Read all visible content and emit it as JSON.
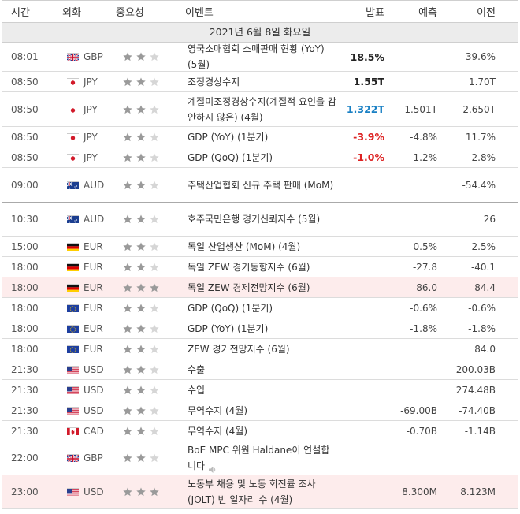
{
  "header": {
    "time": "시간",
    "currency": "외화",
    "importance": "중요성",
    "event": "이벤트",
    "actual": "발표",
    "forecast": "예측",
    "previous": "이전"
  },
  "date": "2021년 6월 8일 화요일",
  "colors": {
    "red": "#dd2222",
    "blue": "#1a80c4",
    "star_active": "#9a9a9a",
    "star_inactive": "#d6d6d6",
    "highlight": "#fdecec"
  },
  "rows": [
    {
      "time": "08:01",
      "flag": "uk-flag-icon",
      "cur": "GBP",
      "stars": 2,
      "event": "영국소매협회 소매판매 현황 (YoY) (5월)",
      "actual": "18.5%",
      "actual_color": "black",
      "forecast": "",
      "previous": "39.6%"
    },
    {
      "time": "08:50",
      "flag": "japan-flag-icon",
      "cur": "JPY",
      "stars": 2,
      "event": "조정경상수지",
      "actual": "1.55T",
      "actual_color": "black",
      "forecast": "",
      "previous": "1.70T"
    },
    {
      "time": "08:50",
      "flag": "japan-flag-icon",
      "cur": "JPY",
      "stars": 2,
      "event": "계절미조정경상수지(계절적 요인을 감안하지 않은) (4월)",
      "actual": "1.322T",
      "actual_color": "blue",
      "forecast": "1.501T",
      "previous": "2.650T"
    },
    {
      "time": "08:50",
      "flag": "japan-flag-icon",
      "cur": "JPY",
      "stars": 2,
      "event": "GDP (YoY) (1분기)",
      "actual": "-3.9%",
      "actual_color": "red",
      "forecast": "-4.8%",
      "previous": "11.7%"
    },
    {
      "time": "08:50",
      "flag": "japan-flag-icon",
      "cur": "JPY",
      "stars": 2,
      "event": "GDP (QoQ) (1분기)",
      "actual": "-1.0%",
      "actual_color": "red",
      "forecast": "-1.2%",
      "previous": "2.8%"
    },
    {
      "time": "09:00",
      "flag": "australia-flag-icon",
      "cur": "AUD",
      "stars": 2,
      "event": "주택산업협회 신규 주택 판매 (MoM)",
      "actual": "",
      "actual_color": "black",
      "forecast": "",
      "previous": "-54.4%"
    },
    {
      "time": "10:30",
      "flag": "australia-flag-icon",
      "cur": "AUD",
      "stars": 2,
      "event": "호주국민은행 경기신뢰지수 (5월)",
      "actual": "",
      "actual_color": "black",
      "forecast": "",
      "previous": "26"
    },
    {
      "time": "15:00",
      "flag": "germany-flag-icon",
      "cur": "EUR",
      "stars": 2,
      "event": "독일 산업생산 (MoM) (4월)",
      "actual": "",
      "actual_color": "black",
      "forecast": "0.5%",
      "previous": "2.5%"
    },
    {
      "time": "18:00",
      "flag": "germany-flag-icon",
      "cur": "EUR",
      "stars": 2,
      "event": "독일 ZEW 경기동향지수 (6월)",
      "actual": "",
      "actual_color": "black",
      "forecast": "-27.8",
      "previous": "-40.1"
    },
    {
      "time": "18:00",
      "flag": "germany-flag-icon",
      "cur": "EUR",
      "stars": 3,
      "event": "독일 ZEW 경제전망지수 (6월)",
      "actual": "",
      "actual_color": "black",
      "forecast": "86.0",
      "previous": "84.4"
    },
    {
      "time": "18:00",
      "flag": "eu-flag-icon",
      "cur": "EUR",
      "stars": 2,
      "event": "GDP (QoQ) (1분기)",
      "actual": "",
      "actual_color": "black",
      "forecast": "-0.6%",
      "previous": "-0.6%"
    },
    {
      "time": "18:00",
      "flag": "eu-flag-icon",
      "cur": "EUR",
      "stars": 2,
      "event": "GDP (YoY) (1분기)",
      "actual": "",
      "actual_color": "black",
      "forecast": "-1.8%",
      "previous": "-1.8%"
    },
    {
      "time": "18:00",
      "flag": "eu-flag-icon",
      "cur": "EUR",
      "stars": 2,
      "event": "ZEW 경기전망지수 (6월)",
      "actual": "",
      "actual_color": "black",
      "forecast": "",
      "previous": "84.0"
    },
    {
      "time": "21:30",
      "flag": "usa-flag-icon",
      "cur": "USD",
      "stars": 2,
      "event": "수출",
      "actual": "",
      "actual_color": "black",
      "forecast": "",
      "previous": "200.03B"
    },
    {
      "time": "21:30",
      "flag": "usa-flag-icon",
      "cur": "USD",
      "stars": 2,
      "event": "수입",
      "actual": "",
      "actual_color": "black",
      "forecast": "",
      "previous": "274.48B"
    },
    {
      "time": "21:30",
      "flag": "usa-flag-icon",
      "cur": "USD",
      "stars": 2,
      "event": "무역수지 (4월)",
      "actual": "",
      "actual_color": "black",
      "forecast": "-69.00B",
      "previous": "-74.40B"
    },
    {
      "time": "21:30",
      "flag": "canada-flag-icon",
      "cur": "CAD",
      "stars": 2,
      "event": "무역수지 (4월)",
      "actual": "",
      "actual_color": "black",
      "forecast": "-0.70B",
      "previous": "-1.14B"
    },
    {
      "time": "22:00",
      "flag": "uk-flag-icon",
      "cur": "GBP",
      "stars": 2,
      "event": "BoE MPC 위원 Haldane이 연설합니다",
      "speaker": true,
      "actual": "",
      "actual_color": "black",
      "forecast": "",
      "previous": ""
    },
    {
      "time": "23:00",
      "flag": "usa-flag-icon",
      "cur": "USD",
      "stars": 3,
      "event": "노동부 채용 및 노동 회전률 조사 (JOLT) 빈 일자리 수 (4월)",
      "actual": "",
      "actual_color": "black",
      "forecast": "8.300M",
      "previous": "8.123M"
    }
  ]
}
